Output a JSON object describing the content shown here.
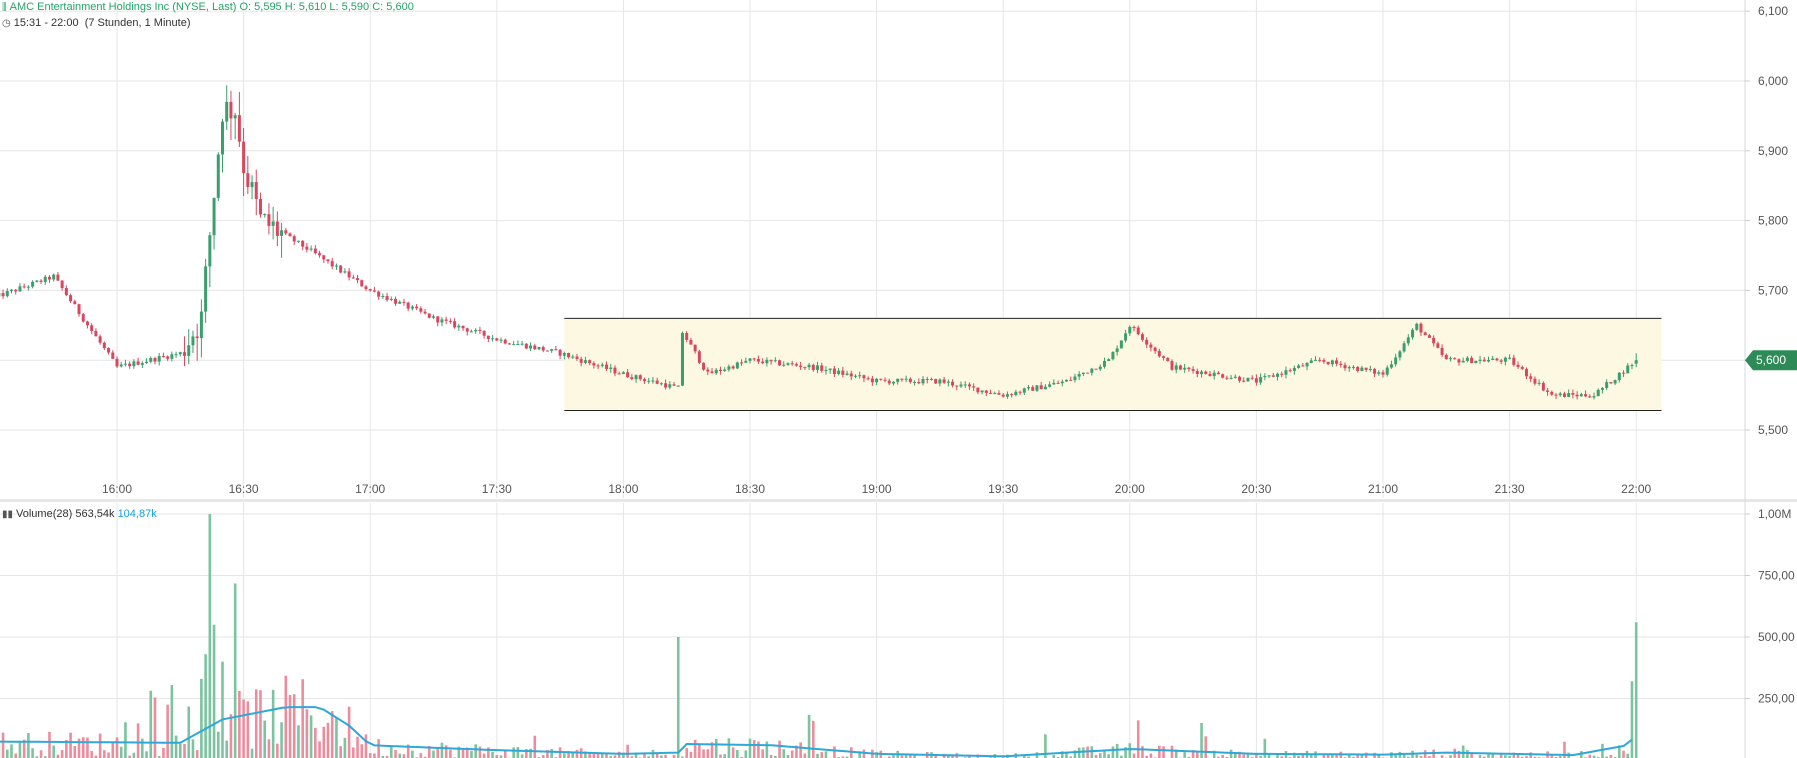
{
  "legend": {
    "title": "AMC Entertainment Holdings Inc (NYSE, Last)",
    "open": "O: 5,595",
    "high": "H: 5,610",
    "low": "L: 5,590",
    "close": "C: 5,600",
    "time_range": "15:31 - 22:00",
    "interval": "(7 Stunden, 1 Minute)",
    "volume_label": "Volume(28)",
    "volume_value": "563,54k",
    "volume_ma_value": "104,87k"
  },
  "price_axis": {
    "ticks": [
      "6,100",
      "6,000",
      "5,900",
      "5,800",
      "5,700",
      "5,600",
      "5,500"
    ],
    "tick_values": [
      6.1,
      6.0,
      5.9,
      5.8,
      5.7,
      5.6,
      5.5
    ],
    "current_label": "5,600",
    "current_value": 5.6
  },
  "volume_axis": {
    "ticks": [
      "1,00M",
      "750,00",
      "500,00",
      "250,00"
    ],
    "tick_values": [
      1000000,
      750000,
      500000,
      250000
    ]
  },
  "time_axis": {
    "ticks": [
      "16:00",
      "16:30",
      "17:00",
      "17:30",
      "18:00",
      "18:30",
      "19:00",
      "19:30",
      "20:00",
      "20:30",
      "21:00",
      "21:30",
      "22:00"
    ]
  },
  "colors": {
    "up": "#3a9e6e",
    "down": "#d9475f",
    "volume_up": "#7cc3a0",
    "volume_down": "#ec8d9e",
    "volume_ma": "#2ea8d8",
    "channel_fill": "#fdf8e1",
    "price_badge": "#2e8b57"
  },
  "chart_data": {
    "type": "candlestick",
    "title": "AMC Entertainment Holdings Inc (NYSE, Last)",
    "interval": "1 Minute",
    "x_range": [
      "15:31",
      "22:00"
    ],
    "ylim": [
      5.42,
      6.1
    ],
    "price_keypoints": [
      {
        "t": "15:31",
        "p": 5.69
      },
      {
        "t": "15:45",
        "p": 5.72
      },
      {
        "t": "16:00",
        "p": 5.59
      },
      {
        "t": "16:15",
        "p": 5.61
      },
      {
        "t": "16:20",
        "p": 5.66
      },
      {
        "t": "16:22",
        "p": 5.78
      },
      {
        "t": "16:25",
        "p": 5.96
      },
      {
        "t": "16:28",
        "p": 5.96
      },
      {
        "t": "16:30",
        "p": 5.88
      },
      {
        "t": "16:34",
        "p": 5.8
      },
      {
        "t": "16:45",
        "p": 5.76
      },
      {
        "t": "17:00",
        "p": 5.7
      },
      {
        "t": "17:15",
        "p": 5.66
      },
      {
        "t": "17:30",
        "p": 5.63
      },
      {
        "t": "17:45",
        "p": 5.61
      },
      {
        "t": "18:00",
        "p": 5.58
      },
      {
        "t": "18:13",
        "p": 5.56
      },
      {
        "t": "18:14",
        "p": 5.64
      },
      {
        "t": "18:20",
        "p": 5.58
      },
      {
        "t": "18:30",
        "p": 5.6
      },
      {
        "t": "18:45",
        "p": 5.59
      },
      {
        "t": "19:00",
        "p": 5.57
      },
      {
        "t": "19:15",
        "p": 5.57
      },
      {
        "t": "19:30",
        "p": 5.55
      },
      {
        "t": "19:45",
        "p": 5.57
      },
      {
        "t": "19:55",
        "p": 5.6
      },
      {
        "t": "20:00",
        "p": 5.65
      },
      {
        "t": "20:10",
        "p": 5.59
      },
      {
        "t": "20:30",
        "p": 5.57
      },
      {
        "t": "20:45",
        "p": 5.6
      },
      {
        "t": "21:00",
        "p": 5.58
      },
      {
        "t": "21:08",
        "p": 5.65
      },
      {
        "t": "21:15",
        "p": 5.6
      },
      {
        "t": "21:30",
        "p": 5.6
      },
      {
        "t": "21:40",
        "p": 5.55
      },
      {
        "t": "21:50",
        "p": 5.55
      },
      {
        "t": "22:00",
        "p": 5.6
      }
    ],
    "ohlc_last": {
      "open": 5.595,
      "high": 5.61,
      "low": 5.59,
      "close": 5.6
    },
    "channel": {
      "start": "17:46",
      "end": "22:06",
      "upper": 5.66,
      "lower": 5.528
    },
    "volume": {
      "ylim": [
        0,
        1000000
      ],
      "ma_period": 28,
      "last": 563540,
      "ma_last": 104870,
      "spikes": [
        {
          "t": "16:22",
          "v": 1000000
        },
        {
          "t": "16:23",
          "v": 550000
        },
        {
          "t": "16:21",
          "v": 430000
        },
        {
          "t": "16:25",
          "v": 400000
        },
        {
          "t": "16:20",
          "v": 330000
        },
        {
          "t": "18:13",
          "v": 500000
        },
        {
          "t": "22:00",
          "v": 560000
        },
        {
          "t": "21:59",
          "v": 320000
        }
      ],
      "ma_keypoints": [
        {
          "t": "15:31",
          "v": 75000
        },
        {
          "t": "16:15",
          "v": 70000
        },
        {
          "t": "16:25",
          "v": 165000
        },
        {
          "t": "16:40",
          "v": 215000
        },
        {
          "t": "16:48",
          "v": 215000
        },
        {
          "t": "16:55",
          "v": 140000
        },
        {
          "t": "17:00",
          "v": 60000
        },
        {
          "t": "17:30",
          "v": 40000
        },
        {
          "t": "18:00",
          "v": 25000
        },
        {
          "t": "18:13",
          "v": 30000
        },
        {
          "t": "18:15",
          "v": 65000
        },
        {
          "t": "18:35",
          "v": 60000
        },
        {
          "t": "19:00",
          "v": 25000
        },
        {
          "t": "19:30",
          "v": 15000
        },
        {
          "t": "20:00",
          "v": 45000
        },
        {
          "t": "20:30",
          "v": 25000
        },
        {
          "t": "21:00",
          "v": 22000
        },
        {
          "t": "21:15",
          "v": 30000
        },
        {
          "t": "21:45",
          "v": 20000
        },
        {
          "t": "21:58",
          "v": 60000
        },
        {
          "t": "22:00",
          "v": 104870
        }
      ]
    }
  }
}
